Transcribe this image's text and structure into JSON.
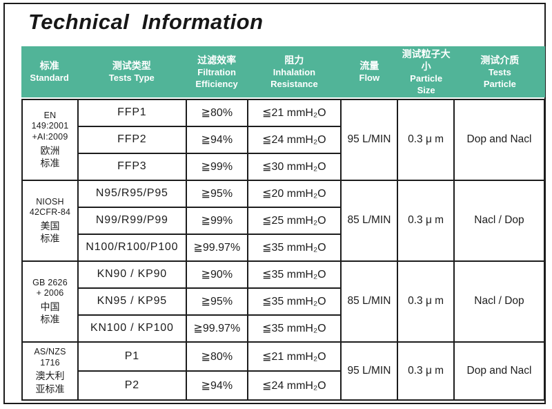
{
  "page": {
    "title": "Technical  Information"
  },
  "colors": {
    "header_bg": "#51b498",
    "border": "#1c1c1c"
  },
  "table": {
    "header": {
      "columns": [
        {
          "zh": "标准",
          "en": "Standard"
        },
        {
          "zh": "测试类型",
          "en": "Tests  Type"
        },
        {
          "zh": "过滤效率",
          "en": "Filtration\nEfficiency"
        },
        {
          "zh": "阻力",
          "en": "Inhalation\nResistance"
        },
        {
          "zh": "流量",
          "en": "Flow"
        },
        {
          "zh": "测试粒子大小",
          "en": "Particle\nSize"
        },
        {
          "zh": "测试介质",
          "en": "Tests\nParticle"
        }
      ]
    },
    "groups": [
      {
        "standard_en": "EN 149:2001\n+AI:2009",
        "standard_zh": "欧洲\n标准",
        "flow": "95 L/MIN",
        "particle_size": "0.3 μ m",
        "test_particle": "Dop and Nacl",
        "rows": [
          {
            "type": "FFP1",
            "efficiency": "≧80%",
            "resistance": "≦21  mmH₂O"
          },
          {
            "type": "FFP2",
            "efficiency": "≧94%",
            "resistance": "≦24  mmH₂O"
          },
          {
            "type": "FFP3",
            "efficiency": "≧99%",
            "resistance": "≦30  mmH₂O"
          }
        ]
      },
      {
        "standard_en": "NIOSH\n42CFR-84",
        "standard_zh": "美国\n标准",
        "flow": "85 L/MIN",
        "particle_size": "0.3 μ m",
        "test_particle": "Nacl / Dop",
        "rows": [
          {
            "type": "N95/R95/P95",
            "efficiency": "≧95%",
            "resistance": "≦20  mmH₂O"
          },
          {
            "type": "N99/R99/P99",
            "efficiency": "≧99%",
            "resistance": "≦25  mmH₂O"
          },
          {
            "type": "N100/R100/P100",
            "efficiency": "≧99.97%",
            "resistance": "≦35  mmH₂O"
          }
        ]
      },
      {
        "standard_en": "GB 2626\n+ 2006",
        "standard_zh": "中国\n标准",
        "flow": "85 L/MIN",
        "particle_size": "0.3 μ m",
        "test_particle": "Nacl / Dop",
        "rows": [
          {
            "type": "KN90 / KP90",
            "efficiency": "≧90%",
            "resistance": "≦35  mmH₂O"
          },
          {
            "type": "KN95 / KP95",
            "efficiency": "≧95%",
            "resistance": "≦35  mmH₂O"
          },
          {
            "type": "KN100 / KP100",
            "efficiency": "≧99.97%",
            "resistance": "≦35  mmH₂O"
          }
        ]
      },
      {
        "standard_en": "AS/NZS\n1716",
        "standard_zh": "澳大利\n亚标准",
        "flow": "95 L/MIN",
        "particle_size": "0.3 μ m",
        "test_particle": "Dop and Nacl",
        "rows": [
          {
            "type": "P1",
            "efficiency": "≧80%",
            "resistance": "≦21  mmH₂O"
          },
          {
            "type": "P2",
            "efficiency": "≧94%",
            "resistance": "≦24  mmH₂O"
          }
        ]
      }
    ]
  }
}
